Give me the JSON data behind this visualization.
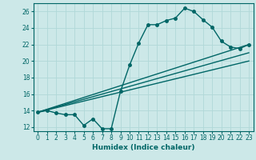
{
  "bg_color": "#cce8e8",
  "line_color": "#006666",
  "grid_color": "#b0d8d8",
  "xlabel": "Humidex (Indice chaleur)",
  "xlim": [
    -0.5,
    23.5
  ],
  "ylim": [
    11.5,
    27.0
  ],
  "xticks": [
    0,
    1,
    2,
    3,
    4,
    5,
    6,
    7,
    8,
    9,
    10,
    11,
    12,
    13,
    14,
    15,
    16,
    17,
    18,
    19,
    20,
    21,
    22,
    23
  ],
  "yticks": [
    12,
    14,
    16,
    18,
    20,
    22,
    24,
    26
  ],
  "series1_x": [
    0,
    1,
    2,
    3,
    4,
    5,
    6,
    7,
    8,
    9,
    10,
    11,
    12,
    13,
    14,
    15,
    16,
    17,
    18,
    19,
    20,
    21,
    22,
    23
  ],
  "series1_y": [
    13.8,
    14.0,
    13.7,
    13.5,
    13.5,
    12.2,
    13.0,
    11.8,
    11.8,
    16.3,
    19.5,
    22.2,
    24.4,
    24.4,
    24.9,
    25.2,
    26.4,
    26.0,
    25.0,
    24.1,
    22.4,
    21.7,
    21.5,
    22.0
  ],
  "series2_x": [
    0,
    23
  ],
  "series2_y": [
    13.8,
    22.0
  ],
  "series3_x": [
    0,
    23
  ],
  "series3_y": [
    13.8,
    21.0
  ],
  "series4_x": [
    0,
    23
  ],
  "series4_y": [
    13.8,
    20.0
  ],
  "marker": "o",
  "marker_size": 2.5,
  "linewidth": 1.0,
  "tick_fontsize": 5.5,
  "xlabel_fontsize": 6.5
}
